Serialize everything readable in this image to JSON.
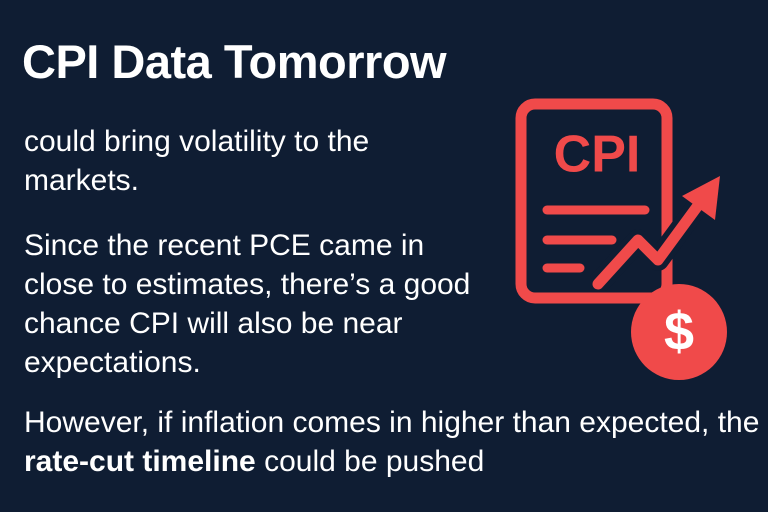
{
  "title": "CPI Data Tomorrow",
  "paragraphs": [
    [
      "could bring volatility to the markets."
    ],
    [
      "Since the recent PCE came in close to estimates, there’s a good chance CPI will also be near expectations."
    ],
    [
      "However, if inflation comes in higher than expected, the",
      "rate-cut timeline",
      "could be pushed"
    ]
  ],
  "icon": {
    "label": "CPI",
    "symbol": "$"
  }
}
